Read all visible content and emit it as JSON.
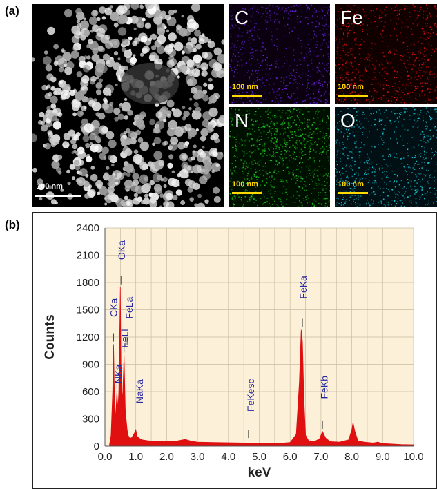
{
  "panel_a": {
    "label": "(a)",
    "sem": {
      "scale_text": "100 nm"
    },
    "maps": [
      {
        "element": "C",
        "scale_text": "100 nm",
        "color": "#6a22d8"
      },
      {
        "element": "Fe",
        "scale_text": "100 nm",
        "color": "#e81010"
      },
      {
        "element": "N",
        "scale_text": "100 nm",
        "color": "#1ec81e"
      },
      {
        "element": "O",
        "scale_text": "100 nm",
        "color": "#18c8d8"
      }
    ],
    "scale_text_color": "#ffd800"
  },
  "panel_b": {
    "label": "(b)"
  },
  "chart_data": {
    "type": "line",
    "xlabel": "keV",
    "ylabel": "Counts",
    "xlim": [
      0,
      10
    ],
    "ylim": [
      0,
      2400
    ],
    "xticks": [
      "0.0",
      "1.0",
      "2.0",
      "3.0",
      "4.0",
      "5.0",
      "6.0",
      "7.0",
      "8.0",
      "9.0",
      "10.0"
    ],
    "yticks": [
      "0",
      "300",
      "600",
      "900",
      "1200",
      "1500",
      "1800",
      "2100",
      "2400"
    ],
    "grid": true,
    "plot_background": "#fcf0d8",
    "series_color": "#e01010",
    "label_color": "#2828a0",
    "series": [
      {
        "x": [
          0.15,
          0.2,
          0.25,
          0.28,
          0.3,
          0.33,
          0.36,
          0.39,
          0.42,
          0.45,
          0.48,
          0.5,
          0.52,
          0.55,
          0.58,
          0.62,
          0.66,
          0.7,
          0.72,
          0.75,
          0.8,
          0.85,
          0.9,
          0.95,
          1.0,
          1.04,
          1.1,
          1.2,
          1.4,
          1.6,
          1.8,
          2.0,
          2.3,
          2.6,
          2.8,
          3.0,
          3.5,
          4.0,
          4.5,
          5.0,
          5.5,
          5.8,
          6.0,
          6.2,
          6.3,
          6.36,
          6.4,
          6.45,
          6.5,
          6.6,
          6.8,
          6.95,
          7.05,
          7.15,
          7.3,
          7.6,
          7.9,
          8.0,
          8.04,
          8.1,
          8.2,
          8.4,
          8.7,
          8.85,
          8.95,
          9.2,
          9.6,
          10.0
        ],
        "y": [
          20,
          120,
          600,
          1120,
          700,
          300,
          420,
          600,
          400,
          600,
          1300,
          1750,
          900,
          500,
          600,
          1000,
          400,
          250,
          180,
          120,
          90,
          90,
          110,
          140,
          180,
          110,
          90,
          70,
          60,
          55,
          50,
          50,
          55,
          75,
          55,
          45,
          40,
          38,
          35,
          32,
          32,
          35,
          40,
          130,
          700,
          1280,
          1150,
          500,
          120,
          60,
          55,
          80,
          160,
          90,
          50,
          45,
          70,
          180,
          260,
          160,
          60,
          45,
          35,
          45,
          30,
          25,
          18,
          15
        ]
      }
    ],
    "annotations": [
      {
        "text": "CKa",
        "x": 0.28,
        "y": 1120
      },
      {
        "text": "NKa",
        "x": 0.39,
        "y": 600
      },
      {
        "text": "OKa",
        "x": 0.52,
        "y": 1750
      },
      {
        "text": "FeLl",
        "x": 0.62,
        "y": 1000
      },
      {
        "text": "FeLa",
        "x": 0.72,
        "y": 1080
      },
      {
        "text": "NaKa",
        "x": 1.04,
        "y": 180
      },
      {
        "text": "FeKesc",
        "x": 4.65,
        "y": 60
      },
      {
        "text": "FeKa",
        "x": 6.4,
        "y": 1280
      },
      {
        "text": "FeKb",
        "x": 7.05,
        "y": 160
      }
    ]
  }
}
